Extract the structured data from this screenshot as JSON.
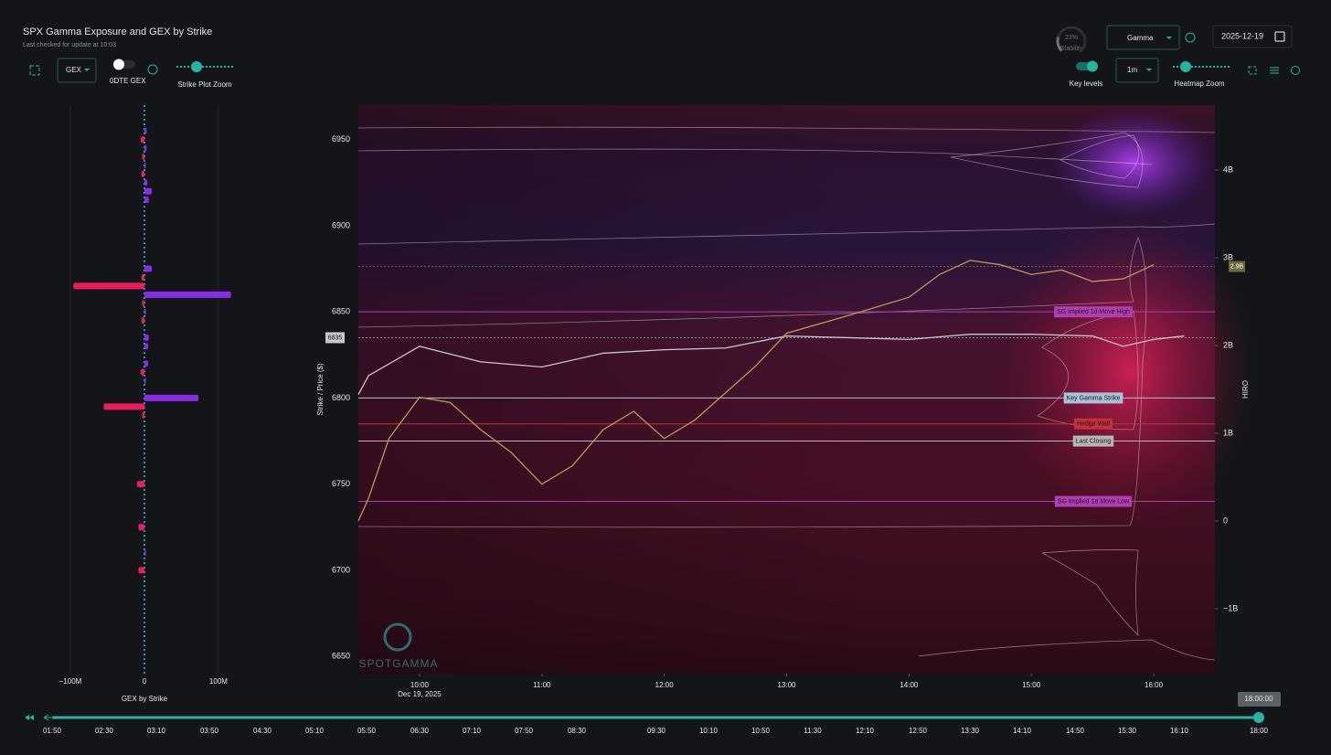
{
  "header": {
    "title": "SPX Gamma Exposure and GEX by Strike",
    "subtitle": "Last checked for update at 10:03"
  },
  "controls": {
    "gex_select": "GEX",
    "dte_toggle": "0DTE GEX",
    "strike_zoom": "Strike Plot Zoom",
    "stability": {
      "value": 23,
      "label": "23%"
    },
    "stability_label": "Stability",
    "mode_select": "Gamma",
    "date": "2025-12-19",
    "key_levels": "Key levels",
    "interval_select": "1m",
    "heatmap_zoom": "Heatmap Zoom"
  },
  "gex_chart": {
    "type": "bar",
    "x_label": "GEX by Strike",
    "positive_color": "#8b2be8",
    "negative_color": "#ee1c5c",
    "xlim": [
      -158,
      126
    ],
    "xticks": [
      {
        "value": -100,
        "label": "−100M"
      },
      0,
      {
        "value": 100,
        "label": "100M"
      }
    ],
    "strikes": [
      6955,
      6950,
      6945,
      6940,
      6935,
      6930,
      6925,
      6920,
      6915,
      6875,
      6870,
      6865,
      6860,
      6855,
      6850,
      6845,
      6835,
      6830,
      6820,
      6815,
      6810,
      6800,
      6795,
      6790,
      6750,
      6725,
      6710,
      6700
    ],
    "values": [
      3,
      -5,
      3,
      -3,
      2,
      -4,
      4,
      10,
      6,
      10,
      -4,
      -96,
      117,
      -3,
      2,
      -4,
      6,
      5,
      5,
      -5,
      2,
      73,
      -55,
      -3,
      -10,
      -8,
      2,
      -8
    ]
  },
  "heatmap_chart": {
    "type": "line",
    "y_label": "Strike / Price ($)",
    "y2_label": "HIRO",
    "x_sublabel": "Dec 19, 2025",
    "xlim": [
      570,
      990
    ],
    "xticks": [
      {
        "value": 600,
        "label": "10:00"
      },
      {
        "value": 660,
        "label": "11:00"
      },
      {
        "value": 720,
        "label": "12:00"
      },
      {
        "value": 780,
        "label": "13:00"
      },
      {
        "value": 840,
        "label": "14:00"
      },
      {
        "value": 900,
        "label": "15:00"
      },
      {
        "value": 960,
        "label": "16:00"
      }
    ],
    "ylim": [
      6640,
      6970
    ],
    "yticks": [
      6650,
      6700,
      6750,
      6800,
      6850,
      6900,
      6950
    ],
    "y2lim": [
      -1.74,
      4.74
    ],
    "y2ticks": [
      {
        "value": -1,
        "label": "−1B"
      },
      0,
      {
        "value": 1,
        "label": "1B"
      },
      {
        "value": 2,
        "label": "2B"
      },
      {
        "value": 3,
        "label": "3B"
      },
      {
        "value": 4,
        "label": "4B"
      }
    ],
    "current_price": 6835,
    "hiro_last": {
      "value": 2.9,
      "label": "2.9B"
    },
    "series": [
      {
        "color": "#c8c8c8",
        "x": [
          570,
          575,
          600,
          630,
          660,
          690,
          720,
          750,
          780,
          810,
          840,
          870,
          900,
          930,
          945,
          960,
          975
        ],
        "values": [
          6802,
          6813,
          6830,
          6821,
          6818,
          6826,
          6828,
          6829,
          6836,
          6835,
          6834,
          6837,
          6837,
          6836,
          6830,
          6834,
          6836
        ]
      },
      {
        "color": "#b89a5a",
        "axis": "y2",
        "x": [
          570,
          575,
          585,
          600,
          615,
          630,
          645,
          660,
          675,
          690,
          705,
          720,
          735,
          750,
          765,
          780,
          810,
          840,
          855,
          870,
          885,
          900,
          915,
          930,
          945,
          960
        ],
        "values": [
          0,
          0.26,
          0.94,
          1.41,
          1.35,
          1.04,
          0.78,
          0.42,
          0.63,
          1.04,
          1.25,
          0.94,
          1.15,
          1.46,
          1.77,
          2.14,
          2.34,
          2.55,
          2.81,
          2.97,
          2.92,
          2.81,
          2.86,
          2.73,
          2.76,
          2.92
        ]
      }
    ],
    "levels": [
      {
        "name": "SG Implied 1d Move High",
        "value": 6850,
        "color": "#b23cb4"
      },
      {
        "name": "Key Gamma Strike",
        "value": 6800,
        "color": "#a9c2d6"
      },
      {
        "name": "Hedge Wall",
        "value": 6785,
        "color": "#c3303a"
      },
      {
        "name": "Last Closing",
        "value": 6775,
        "color": "#b5b5b5"
      },
      {
        "name": "SG Implied 1d Move Low",
        "value": 6740,
        "color": "#b23cb4"
      }
    ]
  },
  "timeline": {
    "labels": [
      "01:50",
      "02:30",
      "03:10",
      "03:50",
      "04:30",
      "05:10",
      "05:50",
      "06:30",
      "07:10",
      "07:50",
      "08:30",
      "09:30",
      "10:10",
      "10:50",
      "11:30",
      "12:10",
      "12:50",
      "13:30",
      "14:10",
      "14:50",
      "15:30",
      "16:10",
      "18:00"
    ],
    "current": "18:00:00"
  },
  "watermark": "SPOTGAMMA"
}
